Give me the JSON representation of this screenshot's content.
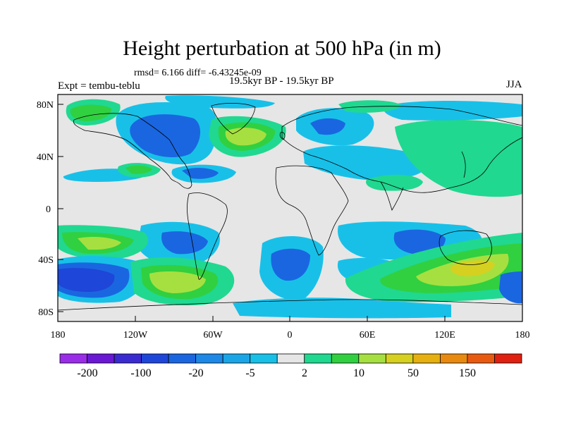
{
  "title": "Height perturbation at 500 hPa (in m)",
  "stats": "rmsd= 6.166 diff= -6.43245e-09",
  "period": "19.5kyr BP - 19.5kyr BP",
  "experiment": "Expt = tembu-teblu",
  "season": "JJA",
  "map_data": {
    "variable": "500 hPa height perturbation (m)",
    "lon_ticks": [
      "180",
      "120W",
      "60W",
      "0",
      "60E",
      "120E",
      "180"
    ],
    "lat_ticks": [
      "80N",
      "40N",
      "0",
      "40S",
      "80S"
    ],
    "ocean_fill": "#e6e6e6"
  },
  "colorbar": {
    "labels": [
      "-200",
      "-100",
      "-20",
      "-5",
      "2",
      "10",
      "50",
      "150"
    ],
    "colors": [
      "#9a2de8",
      "#6a18d4",
      "#3a2bd0",
      "#1e46d8",
      "#1a66e0",
      "#1d88e6",
      "#1aa6e6",
      "#18c0e8",
      "#e6e6e6",
      "#20d890",
      "#30d040",
      "#a6e040",
      "#d6d020",
      "#e6b010",
      "#e88a10",
      "#e85a10",
      "#e02010"
    ]
  },
  "colors": {
    "neg_light": "#18c0e8",
    "neg_mid": "#1aa6e6",
    "neg_dark": "#1a66e0",
    "neg_deep": "#1e46d8",
    "pos_light": "#20d890",
    "pos_mid": "#30d040",
    "pos_high": "#a6e040",
    "pos_top": "#d6d020"
  }
}
